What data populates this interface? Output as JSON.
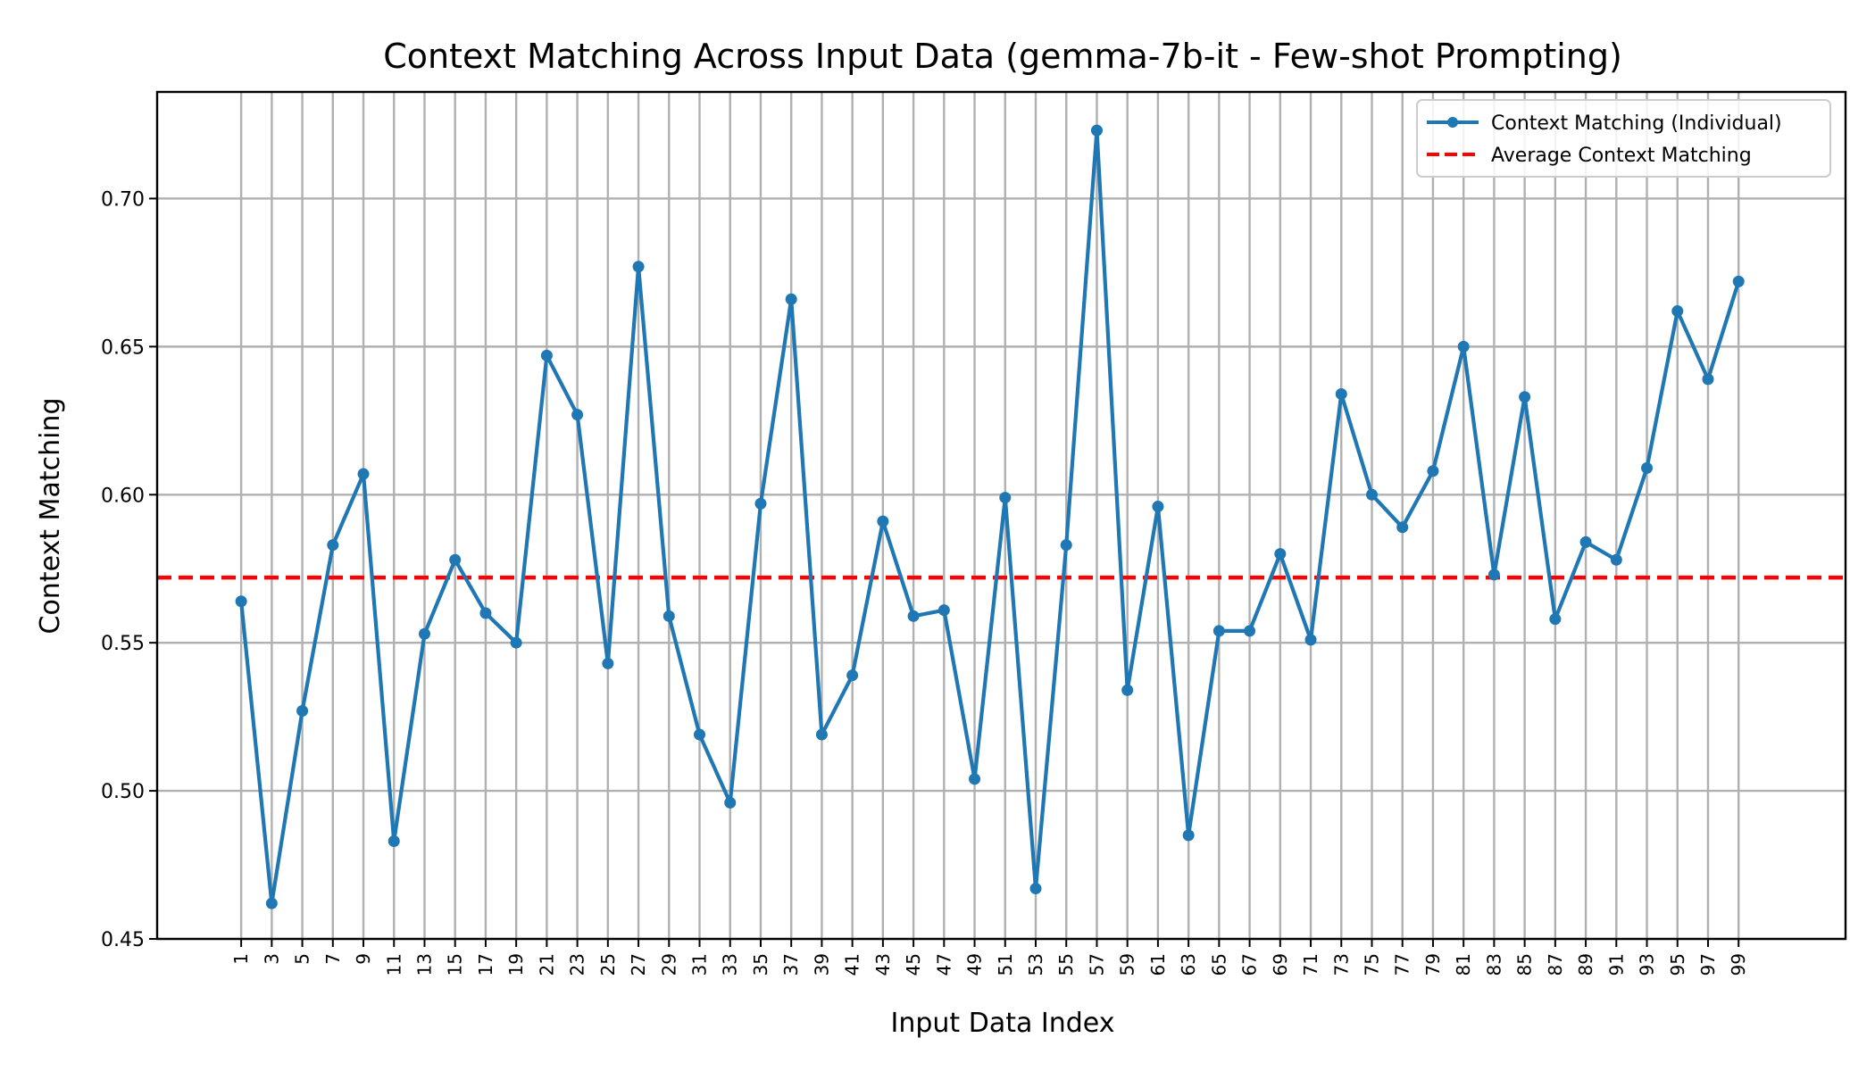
{
  "chart_data": {
    "type": "line",
    "title": "Context Matching Across Input Data (gemma-7b-it - Few-shot Prompting)",
    "xlabel": "Input Data Index",
    "ylabel": "Context Matching",
    "x": [
      1,
      3,
      5,
      7,
      9,
      11,
      13,
      15,
      17,
      19,
      21,
      23,
      25,
      27,
      29,
      31,
      33,
      35,
      37,
      39,
      41,
      43,
      45,
      47,
      49,
      51,
      53,
      55,
      57,
      59,
      61,
      63,
      65,
      67,
      69,
      71,
      73,
      75,
      77,
      79,
      81,
      83,
      85,
      87,
      89,
      91,
      93,
      95,
      97,
      99
    ],
    "x_tick_labels": [
      "1",
      "3",
      "5",
      "7",
      "9",
      "11",
      "13",
      "15",
      "17",
      "19",
      "21",
      "23",
      "25",
      "27",
      "29",
      "31",
      "33",
      "35",
      "37",
      "39",
      "41",
      "43",
      "45",
      "47",
      "49",
      "51",
      "53",
      "55",
      "57",
      "59",
      "61",
      "63",
      "65",
      "67",
      "69",
      "71",
      "73",
      "75",
      "77",
      "79",
      "81",
      "83",
      "85",
      "87",
      "89",
      "91",
      "93",
      "95",
      "97",
      "99"
    ],
    "y_ticks": [
      0.45,
      0.5,
      0.55,
      0.6,
      0.65,
      0.7
    ],
    "y_tick_labels": [
      "0.45",
      "0.50",
      "0.55",
      "0.60",
      "0.65",
      "0.70"
    ],
    "ylim": [
      0.45,
      0.736
    ],
    "xlim": [
      -4.5,
      106
    ],
    "grid": true,
    "legend_position": "top-right",
    "series": [
      {
        "name": "Context Matching (Individual)",
        "color": "#1f77b4",
        "style": "solid",
        "marker": "circle",
        "values": [
          0.564,
          0.462,
          0.527,
          0.583,
          0.607,
          0.483,
          0.553,
          0.578,
          0.56,
          0.55,
          0.647,
          0.627,
          0.543,
          0.677,
          0.559,
          0.519,
          0.496,
          0.597,
          0.666,
          0.519,
          0.539,
          0.591,
          0.559,
          0.561,
          0.504,
          0.599,
          0.467,
          0.583,
          0.723,
          0.534,
          0.596,
          0.485,
          0.554,
          0.554,
          0.58,
          0.551,
          0.634,
          0.6,
          0.589,
          0.608,
          0.65,
          0.573,
          0.633,
          0.558,
          0.584,
          0.578,
          0.609,
          0.662,
          0.639,
          0.672
        ]
      }
    ],
    "reference_lines": [
      {
        "name": "Average Context Matching",
        "color": "#ff0000",
        "style": "dashed",
        "y": 0.572
      }
    ]
  }
}
